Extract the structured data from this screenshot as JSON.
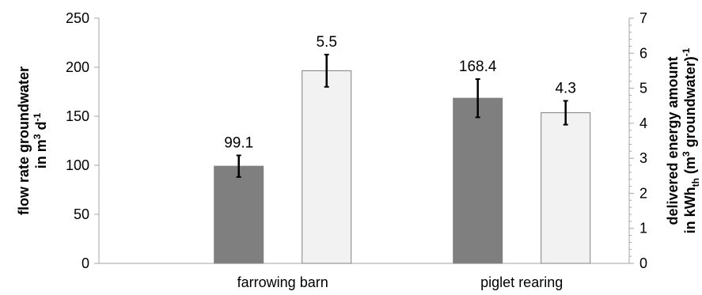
{
  "chart_data": {
    "type": "bar",
    "categories": [
      "farrowing barn",
      "piglet rearing"
    ],
    "series": [
      {
        "axis": "left",
        "color": "#7f7f7f",
        "values": [
          99.1,
          168.4
        ],
        "error": [
          11.0,
          19.5
        ],
        "labels": [
          "99.1",
          "168.4"
        ]
      },
      {
        "axis": "right",
        "color": "#f2f2f2",
        "values": [
          5.5,
          4.3
        ],
        "error": [
          0.46,
          0.34
        ],
        "labels": [
          "5.5",
          "4.3"
        ]
      }
    ],
    "y_left": {
      "label_line1": "flow rate groundwater",
      "label_line2_prefix": "in m",
      "label_line2_sup1": "3",
      "label_line2_mid": " d",
      "label_line2_sup2": "-1",
      "ylim": [
        0,
        250
      ],
      "ticks": [
        "0",
        "50",
        "100",
        "150",
        "200",
        "250"
      ]
    },
    "y_right": {
      "label_line1": "delivered energy amount",
      "label_line2_prefix": "in kWh",
      "label_line2_sub": "th",
      "label_line2_mid": " (m",
      "label_line2_sup1": "3",
      "label_line2_suffix": " groundwater)",
      "label_line2_sup2": "-1",
      "ylim": [
        0,
        7
      ],
      "ticks": [
        "0",
        "1",
        "2",
        "3",
        "4",
        "5",
        "6",
        "7"
      ]
    },
    "grid": false,
    "legend": "none"
  }
}
